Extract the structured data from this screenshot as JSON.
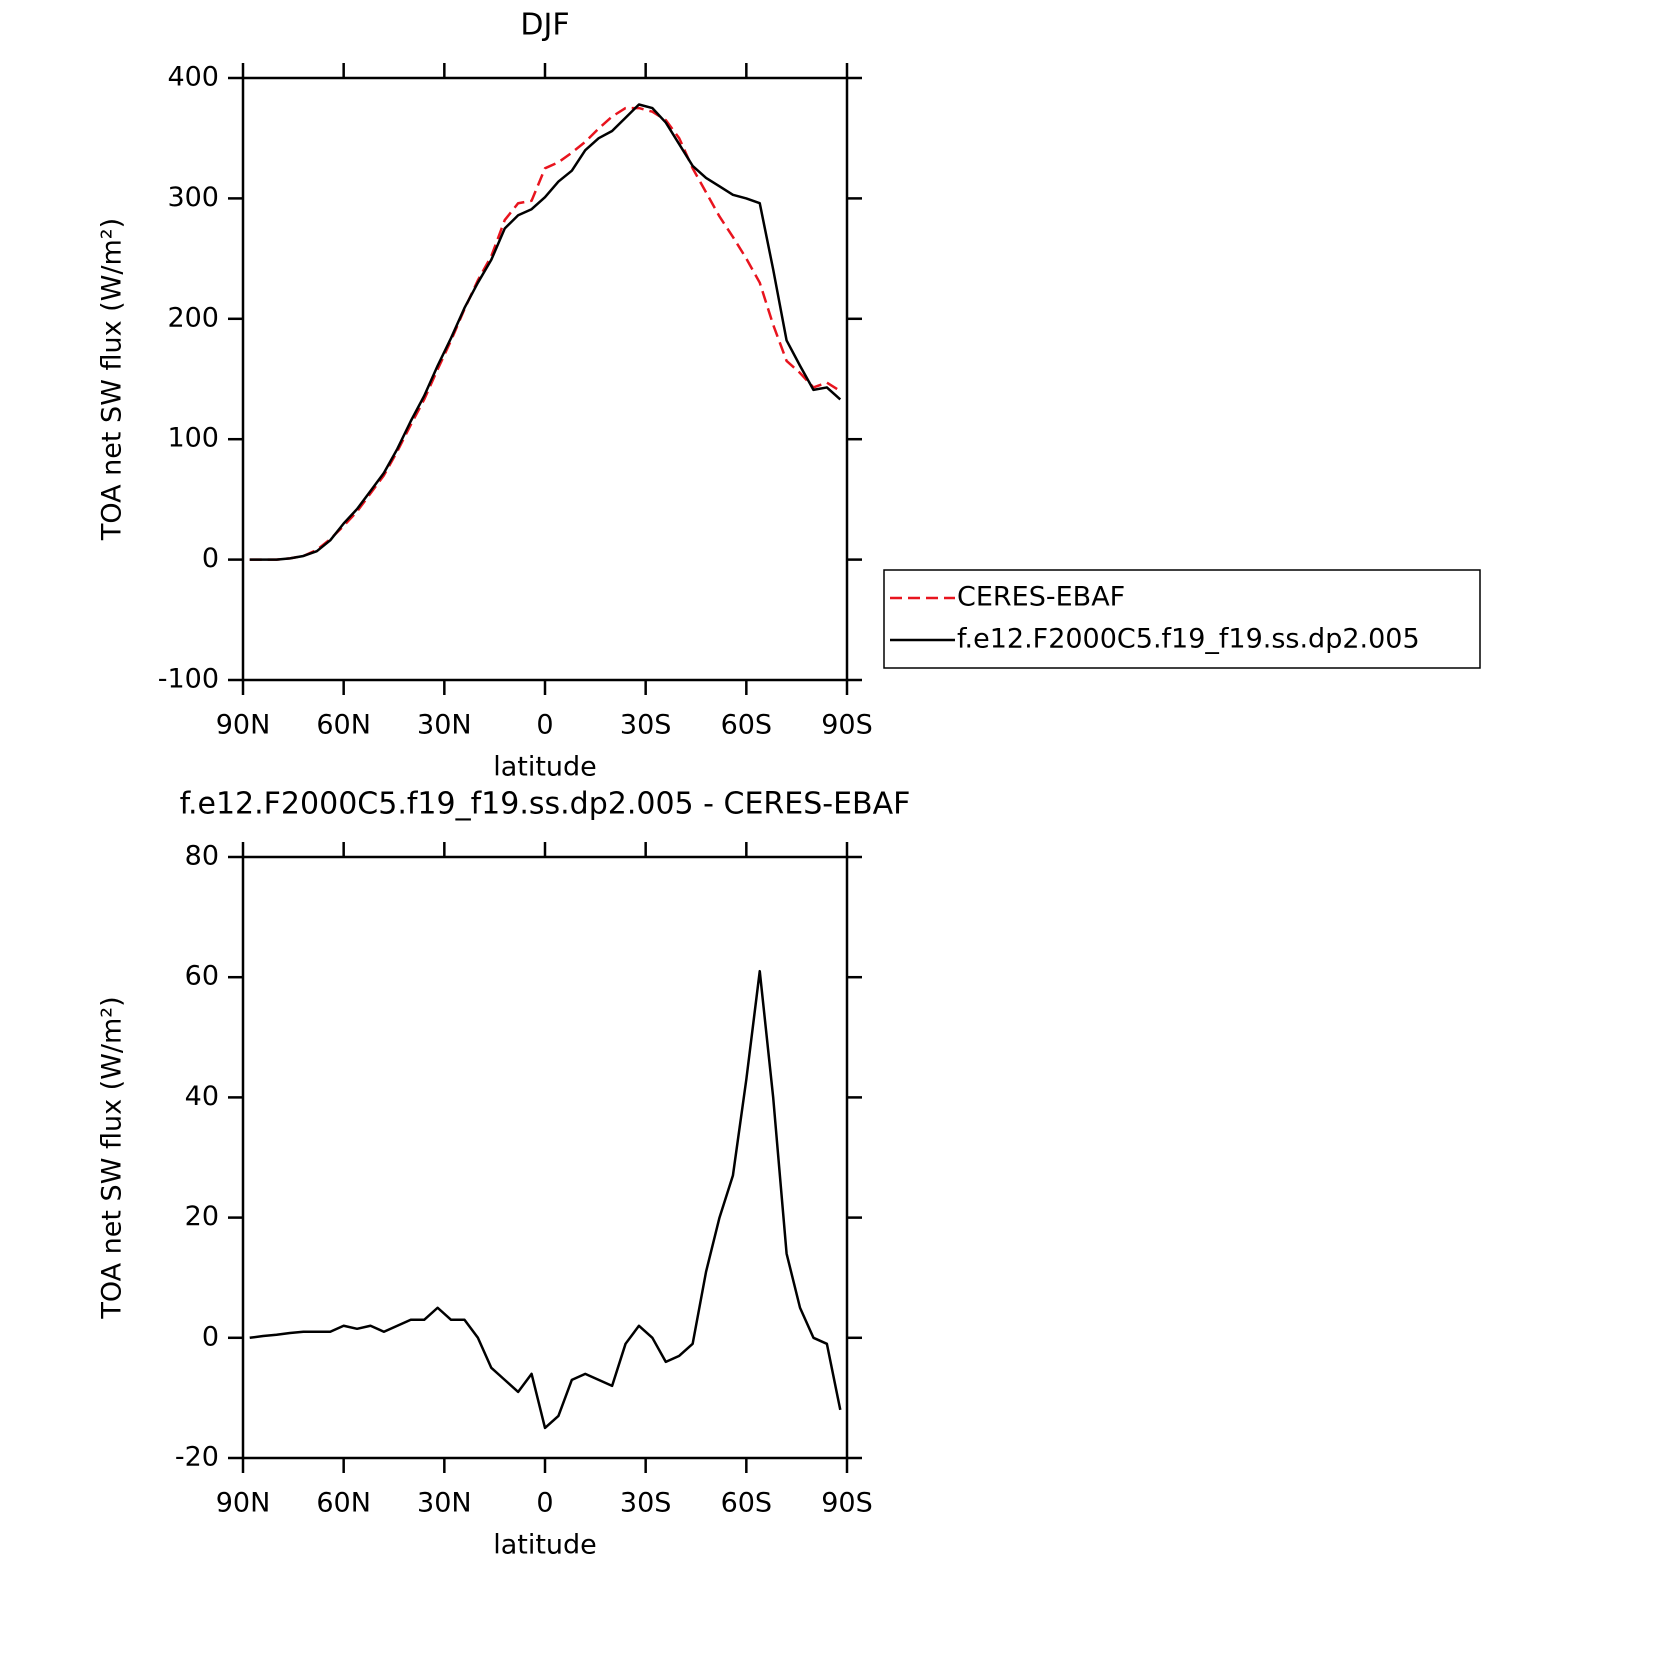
{
  "chart_data": [
    {
      "type": "line",
      "title": "DJF",
      "xlabel": "latitude",
      "ylabel": "TOA net SW flux (W/m²)",
      "x": [
        88,
        84,
        80,
        76,
        72,
        68,
        64,
        60,
        56,
        52,
        48,
        44,
        40,
        36,
        32,
        28,
        24,
        20,
        16,
        12,
        8,
        4,
        0,
        -4,
        -8,
        -12,
        -16,
        -20,
        -24,
        -28,
        -32,
        -36,
        -40,
        -44,
        -48,
        -52,
        -56,
        -60,
        -64,
        -68,
        -72,
        -76,
        -80,
        -84,
        -88
      ],
      "series": [
        {
          "name": "CERES-EBAF",
          "color": "#e8141e",
          "linestyle": "dashed",
          "values": [
            0,
            0,
            0,
            1,
            3,
            8,
            17,
            28,
            40,
            55,
            70,
            90,
            112,
            133,
            158,
            182,
            208,
            232,
            252,
            282,
            296,
            298,
            325,
            330,
            338,
            347,
            358,
            368,
            375,
            375,
            372,
            365,
            350,
            325,
            305,
            285,
            268,
            250,
            230,
            195,
            165,
            155,
            143,
            147,
            140
          ]
        },
        {
          "name": "f.e12.F2000C5.f19_f19.ss.dp2.005",
          "color": "#000000",
          "linestyle": "solid",
          "values": [
            0,
            0,
            0,
            1,
            3,
            7,
            16,
            30,
            42,
            57,
            72,
            92,
            115,
            136,
            161,
            184,
            209,
            230,
            249,
            275,
            286,
            291,
            301,
            314,
            323,
            340,
            350,
            356,
            367,
            378,
            375,
            363,
            345,
            327,
            317,
            310,
            303,
            300,
            296,
            241,
            182,
            161,
            141,
            143,
            133
          ]
        }
      ],
      "xlim": [
        90,
        -90
      ],
      "xticks": [
        {
          "value": 90,
          "label": "90N"
        },
        {
          "value": 60,
          "label": "60N"
        },
        {
          "value": 30,
          "label": "30N"
        },
        0,
        {
          "value": -30,
          "label": "30S"
        },
        {
          "value": -60,
          "label": "60S"
        },
        {
          "value": -90,
          "label": "90S"
        }
      ],
      "ylim": [
        -100,
        400
      ],
      "yticks": [
        -100,
        0,
        100,
        200,
        300,
        400
      ],
      "legend": "right"
    },
    {
      "type": "line",
      "title": "f.e12.F2000C5.f19_f19.ss.dp2.005 - CERES-EBAF",
      "xlabel": "latitude",
      "ylabel": "TOA net SW flux (W/m²)",
      "x": [
        88,
        84,
        80,
        76,
        72,
        68,
        64,
        60,
        56,
        52,
        48,
        44,
        40,
        36,
        32,
        28,
        24,
        20,
        16,
        12,
        8,
        4,
        0,
        -4,
        -8,
        -12,
        -16,
        -20,
        -24,
        -28,
        -32,
        -36,
        -40,
        -44,
        -48,
        -52,
        -56,
        -60,
        -64,
        -68,
        -72,
        -76,
        -80,
        -84,
        -88
      ],
      "series": [
        {
          "color": "#000000",
          "linestyle": "solid",
          "values": [
            0,
            0.3,
            0.5,
            0.8,
            1,
            1,
            1,
            2,
            1.5,
            2,
            1,
            2,
            3,
            3,
            5,
            3,
            3,
            0,
            -5,
            -7,
            -9,
            -6,
            -15,
            -13,
            -7,
            -6,
            -7,
            -8,
            -1,
            2,
            0,
            -4,
            -3,
            -1,
            11,
            20,
            27,
            43,
            61,
            40,
            14,
            5,
            0,
            -1,
            -12
          ]
        }
      ],
      "xlim": [
        90,
        -90
      ],
      "xticks": [
        {
          "value": 90,
          "label": "90N"
        },
        {
          "value": 60,
          "label": "60N"
        },
        {
          "value": 30,
          "label": "30N"
        },
        0,
        {
          "value": -30,
          "label": "30S"
        },
        {
          "value": -60,
          "label": "60S"
        },
        {
          "value": -90,
          "label": "90S"
        }
      ],
      "ylim": [
        -20,
        80
      ],
      "yticks": [
        -20,
        0,
        20,
        40,
        60,
        80
      ]
    }
  ]
}
